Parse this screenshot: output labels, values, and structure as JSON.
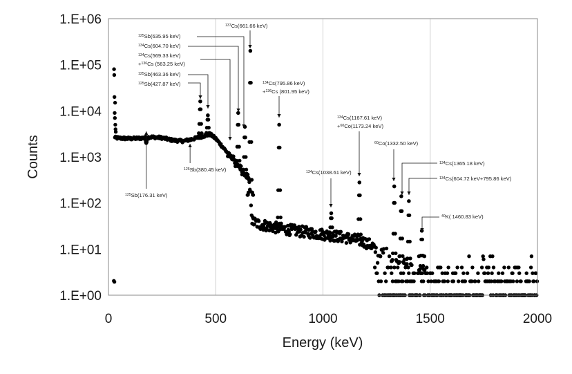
{
  "chart_data": {
    "type": "scatter",
    "title": "",
    "xlabel": "Energy (keV)",
    "ylabel": "Counts",
    "xlim": [
      0,
      2000
    ],
    "ylim": [
      1,
      1000000
    ],
    "yscale": "log",
    "grid": "vertical only",
    "x_ticks": [
      "0",
      "500",
      "1000",
      "1500",
      "2000"
    ],
    "x_tick_values": [
      0,
      500,
      1000,
      1500,
      2000
    ],
    "y_ticks": [
      "1.E+00",
      "1.E+01",
      "1.E+02",
      "1.E+03",
      "1.E+04",
      "1.E+05",
      "1.E+06"
    ],
    "y_tick_values": [
      1,
      10,
      100,
      1000,
      10000,
      100000,
      1000000
    ],
    "marker_color": "#000000",
    "continuum": [
      [
        30,
        2600
      ],
      [
        60,
        2550
      ],
      [
        100,
        2500
      ],
      [
        150,
        2550
      ],
      [
        200,
        2700
      ],
      [
        250,
        2600
      ],
      [
        300,
        2300
      ],
      [
        350,
        2200
      ],
      [
        400,
        2500
      ],
      [
        450,
        2900
      ],
      [
        475,
        3100
      ],
      [
        500,
        2500
      ],
      [
        540,
        1500
      ],
      [
        580,
        900
      ],
      [
        620,
        500
      ],
      [
        655,
        330
      ],
      [
        665,
        100
      ],
      [
        670,
        40
      ],
      [
        700,
        35
      ],
      [
        800,
        28
      ],
      [
        900,
        24
      ],
      [
        1000,
        21
      ],
      [
        1100,
        18
      ],
      [
        1180,
        15
      ],
      [
        1230,
        12
      ],
      [
        1260,
        8
      ],
      [
        1300,
        6
      ],
      [
        1400,
        4.5
      ],
      [
        1500,
        3
      ],
      [
        1700,
        2.2
      ],
      [
        2000,
        2
      ]
    ],
    "peaks": [
      {
        "label": "¹²⁵Sb(176.31 keV)",
        "x": 176.31,
        "y": 2000
      },
      {
        "label": "¹²⁵Sb(380.45 keV)",
        "x": 380.45,
        "y": 2300
      },
      {
        "label": "¹²⁵Sb(427.87 keV)",
        "x": 427.87,
        "y": 16000
      },
      {
        "label": "¹²⁵Sb(463.36 keV)",
        "x": 463.36,
        "y": 8000
      },
      {
        "label": "¹³⁴Cs(569.33 keV) +¹³⁶Cs (563.25 keV)",
        "x": 569.33,
        "y": 1000
      },
      {
        "label": "¹³⁴Cs(604.70 keV)",
        "x": 604.7,
        "y": 9000
      },
      {
        "label": "¹²⁵Sb(635.95 keV)",
        "x": 635.95,
        "y": 4500
      },
      {
        "label": "¹³⁷Cs(661.66 keV)",
        "x": 661.66,
        "y": 200000
      },
      {
        "label": "¹³⁴Cs(795.86 keV) +¹³⁶Cs (801.95 keV)",
        "x": 795.86,
        "y": 5000
      },
      {
        "label": "¹³⁴Cs(1038.61 keV)",
        "x": 1038.61,
        "y": 60
      },
      {
        "label": "¹³⁴Cs(1167.61 keV) +⁶⁰Co(1173.24 keV)",
        "x": 1170,
        "y": 280
      },
      {
        "label": "⁶⁰Co(1332.50 keV)",
        "x": 1332.5,
        "y": 230
      },
      {
        "label": "¹³⁴Cs(1365.18 keV)",
        "x": 1365.18,
        "y": 140
      },
      {
        "label": "¹³⁴Cs(604.72 keV+795.86 keV)",
        "x": 1400.58,
        "y": 110
      },
      {
        "label": "⁴⁰K(1460.83 keV)",
        "x": 1460.83,
        "y": 25
      }
    ]
  },
  "annotations": {
    "sb176": {
      "sup": "125",
      "text": "Sb(176.31 keV)"
    },
    "sb380": {
      "sup": "125",
      "text": "Sb(380.45 keV)"
    },
    "sb427": {
      "sup": "125",
      "text": "Sb(427.87 keV)"
    },
    "sb463": {
      "sup": "125",
      "text": "Sb(463.36 keV)"
    },
    "cs569_a": {
      "sup": "134",
      "text": "Cs(569.33 keV)"
    },
    "cs569_b": {
      "pre": "+",
      "sup": "136",
      "text": "Cs (563.25 keV)"
    },
    "cs604": {
      "sup": "134",
      "text": "Cs(604.70 keV)"
    },
    "sb635": {
      "sup": "125",
      "text": "Sb(635.95 keV)"
    },
    "cs661": {
      "sup": "137",
      "text": "Cs(661.66 keV)"
    },
    "cs795_a": {
      "sup": "134",
      "text": "Cs(795.86 keV)"
    },
    "cs795_b": {
      "pre": "+",
      "sup": "136",
      "text": "Cs (801.95 keV)"
    },
    "cs1038": {
      "sup": "134",
      "text": "Cs(1038.61 keV)"
    },
    "cs1167_a": {
      "sup": "134",
      "text": "Cs(1167.61 keV)"
    },
    "cs1167_b": {
      "pre": "+",
      "sup": "60",
      "text": "Co(1173.24 keV)"
    },
    "co1332": {
      "sup": "60",
      "text": "Co(1332.50 keV)"
    },
    "cs1365": {
      "sup": "134",
      "text": "Cs(1365.18 keV)"
    },
    "cs_sum": {
      "sup": "134",
      "text": "Cs(604.72 keV+795.86 keV)"
    },
    "k40": {
      "sup": "40",
      "text": "K( 1460.83 keV)"
    }
  }
}
